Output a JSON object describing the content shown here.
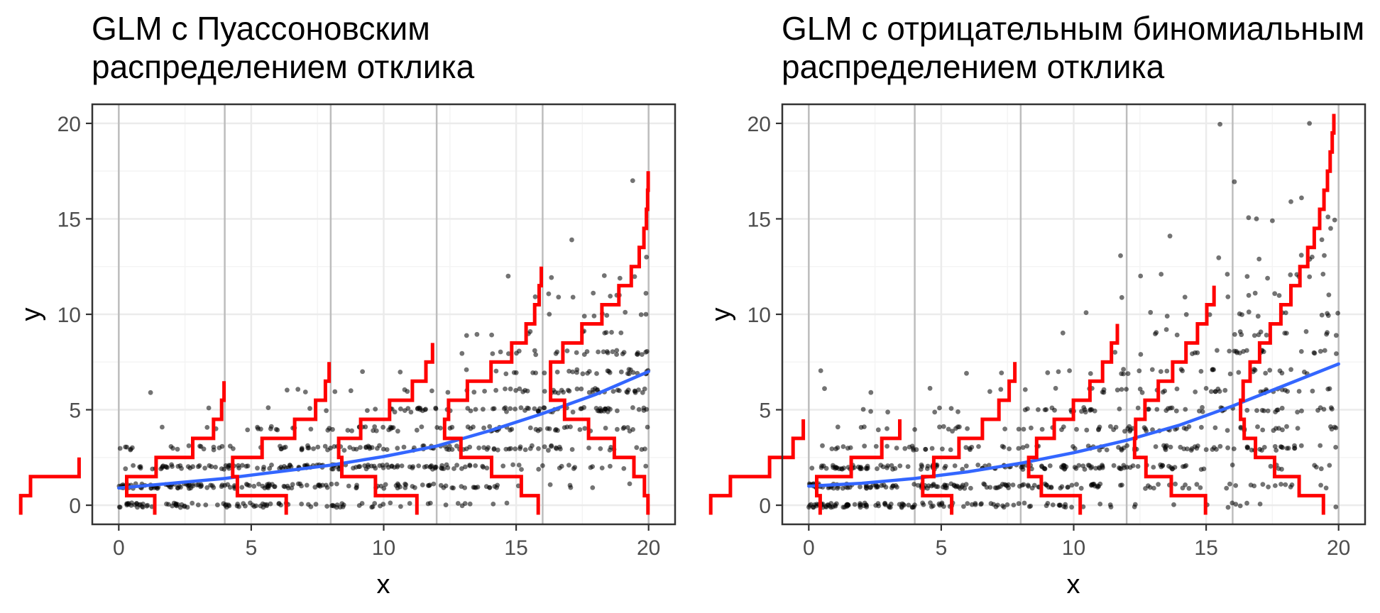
{
  "colors": {
    "points": "#000000",
    "fit_line": "#3366ff",
    "density": "#ff0000",
    "major_grid": "#ebebeb",
    "minor_grid": "#f4f4f4",
    "highlight_grid": "#bdbdbd",
    "panel_border": "#333333",
    "tick_text": "#4d4d4d"
  },
  "chart_data": [
    {
      "type": "scatter",
      "title_lines": [
        "GLM с Пуассоновским",
        "распределением отклика"
      ],
      "xlabel": "x",
      "ylabel": "y",
      "xlim": [
        -1,
        21
      ],
      "ylim": [
        -1,
        21
      ],
      "xticks": [
        0,
        5,
        10,
        15,
        20
      ],
      "yticks": [
        0,
        5,
        10,
        15,
        20
      ],
      "grid": true,
      "highlighted_x": [
        0,
        4,
        8,
        12,
        16,
        20
      ],
      "points_description_n": 800,
      "fit": {
        "name": "Poisson GLM fit",
        "x": [
          0,
          2,
          4,
          6,
          8,
          10,
          12,
          14,
          16,
          18,
          20
        ],
        "y": [
          0.9,
          1.15,
          1.4,
          1.75,
          2.1,
          2.55,
          3.1,
          3.9,
          4.8,
          5.8,
          7.0
        ]
      },
      "density_profiles": [
        {
          "x": 0,
          "mean": 0.9,
          "max_y": 2
        },
        {
          "x": 4,
          "mean": 1.4,
          "max_y": 6
        },
        {
          "x": 8,
          "mean": 2.1,
          "max_y": 7
        },
        {
          "x": 12,
          "mean": 3.1,
          "max_y": 8
        },
        {
          "x": 16,
          "mean": 4.8,
          "max_y": 12
        },
        {
          "x": 20,
          "mean": 7.0,
          "max_y": 17
        }
      ],
      "outliers": [
        [
          0.25,
          3.05
        ],
        [
          1.2,
          5.9
        ],
        [
          9.2,
          7.0
        ],
        [
          14.7,
          12.0
        ],
        [
          16.6,
          10.9
        ],
        [
          17.1,
          13.9
        ],
        [
          18.8,
          11.0
        ],
        [
          19.4,
          17.0
        ],
        [
          19.9,
          11.1
        ],
        [
          19.9,
          10.0
        ]
      ]
    },
    {
      "type": "scatter",
      "title_lines": [
        "GLM с отрицательным биномиальным",
        "распределением отклика"
      ],
      "xlabel": "x",
      "ylabel": "y",
      "xlim": [
        -1,
        21
      ],
      "ylim": [
        -1,
        21
      ],
      "xticks": [
        0,
        5,
        10,
        15,
        20
      ],
      "yticks": [
        0,
        5,
        10,
        15,
        20
      ],
      "grid": true,
      "highlighted_x": [
        0,
        4,
        8,
        12,
        16,
        20
      ],
      "points_description_n": 800,
      "fit": {
        "name": "Negative binomial GLM fit",
        "x": [
          0,
          2,
          4,
          6,
          8,
          10,
          12,
          14,
          16,
          18,
          20
        ],
        "y": [
          1.0,
          1.15,
          1.4,
          1.75,
          2.2,
          2.75,
          3.4,
          4.2,
          5.2,
          6.3,
          7.4
        ]
      },
      "density_profiles": [
        {
          "x": 0,
          "mean": 1.0,
          "max_y": 4
        },
        {
          "x": 4,
          "mean": 1.4,
          "max_y": 4
        },
        {
          "x": 8,
          "mean": 2.2,
          "max_y": 7
        },
        {
          "x": 12,
          "mean": 3.4,
          "max_y": 9
        },
        {
          "x": 16,
          "mean": 5.2,
          "max_y": 11
        },
        {
          "x": 20,
          "mean": 7.4,
          "max_y": 20
        }
      ],
      "outliers": [
        [
          18.9,
          20.0
        ],
        [
          18.6,
          16.1
        ],
        [
          18.2,
          15.9
        ],
        [
          16.9,
          15.0
        ],
        [
          17.5,
          14.9
        ],
        [
          19.6,
          15.1
        ],
        [
          19.7,
          14.5
        ],
        [
          19.0,
          13.0
        ],
        [
          15.8,
          12.1
        ],
        [
          12.9,
          10.1
        ],
        [
          13.5,
          9.2
        ],
        [
          14.2,
          10.9
        ]
      ]
    }
  ]
}
